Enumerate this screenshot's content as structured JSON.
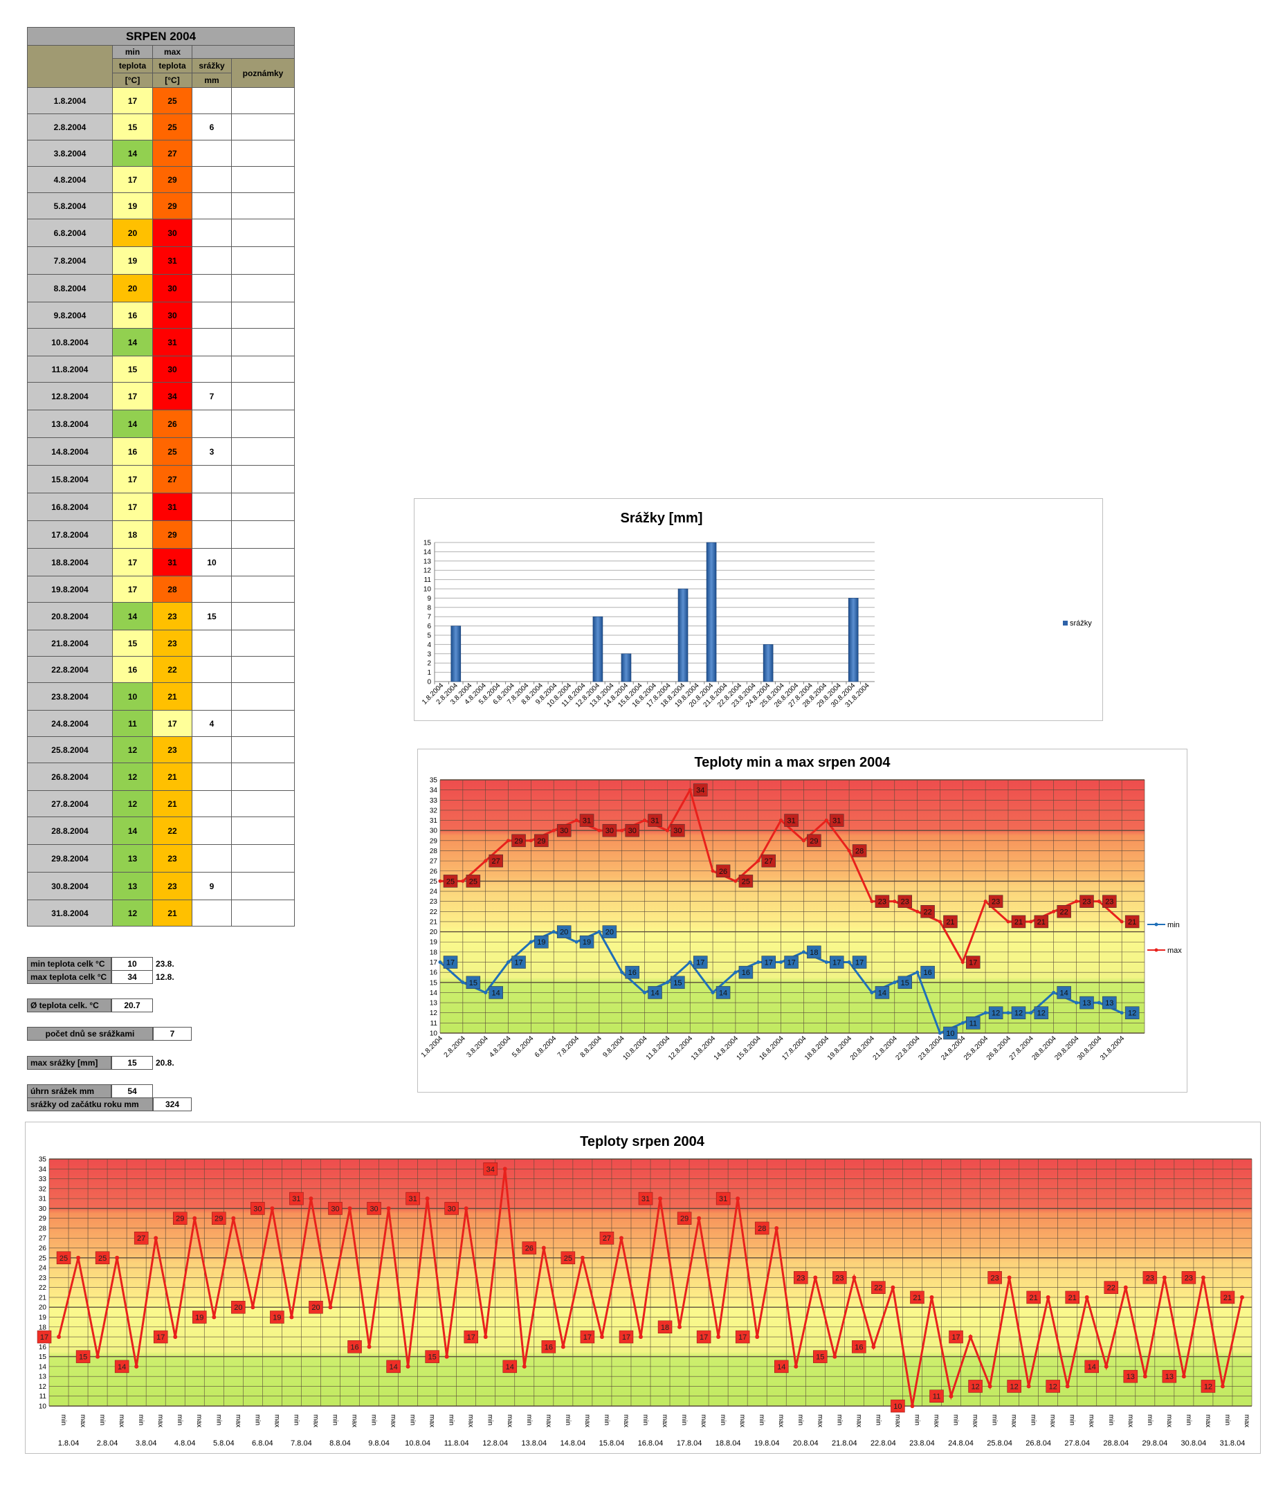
{
  "table": {
    "title": "SRPEN 2004",
    "headers": {
      "min_top": "min",
      "max_top": "max",
      "min_mid": "teplota",
      "max_mid": "teplota",
      "rain_mid": "srážky",
      "notes_mid": "poznámky",
      "min_unit": "[°C]",
      "max_unit": "[°C]",
      "rain_unit": "mm"
    },
    "rows": [
      {
        "date": "1.8.2004",
        "min": "17",
        "max": "25",
        "rain": ""
      },
      {
        "date": "2.8.2004",
        "min": "15",
        "max": "25",
        "rain": "6"
      },
      {
        "date": "3.8.2004",
        "min": "14",
        "max": "27",
        "rain": ""
      },
      {
        "date": "4.8.2004",
        "min": "17",
        "max": "29",
        "rain": ""
      },
      {
        "date": "5.8.2004",
        "min": "19",
        "max": "29",
        "rain": ""
      },
      {
        "date": "6.8.2004",
        "min": "20",
        "max": "30",
        "rain": ""
      },
      {
        "date": "7.8.2004",
        "min": "19",
        "max": "31",
        "rain": ""
      },
      {
        "date": "8.8.2004",
        "min": "20",
        "max": "30",
        "rain": ""
      },
      {
        "date": "9.8.2004",
        "min": "16",
        "max": "30",
        "rain": ""
      },
      {
        "date": "10.8.2004",
        "min": "14",
        "max": "31",
        "rain": ""
      },
      {
        "date": "11.8.2004",
        "min": "15",
        "max": "30",
        "rain": ""
      },
      {
        "date": "12.8.2004",
        "min": "17",
        "max": "34",
        "rain": "7"
      },
      {
        "date": "13.8.2004",
        "min": "14",
        "max": "26",
        "rain": ""
      },
      {
        "date": "14.8.2004",
        "min": "16",
        "max": "25",
        "rain": "3"
      },
      {
        "date": "15.8.2004",
        "min": "17",
        "max": "27",
        "rain": ""
      },
      {
        "date": "16.8.2004",
        "min": "17",
        "max": "31",
        "rain": ""
      },
      {
        "date": "17.8.2004",
        "min": "18",
        "max": "29",
        "rain": ""
      },
      {
        "date": "18.8.2004",
        "min": "17",
        "max": "31",
        "rain": "10"
      },
      {
        "date": "19.8.2004",
        "min": "17",
        "max": "28",
        "rain": ""
      },
      {
        "date": "20.8.2004",
        "min": "14",
        "max": "23",
        "rain": "15"
      },
      {
        "date": "21.8.2004",
        "min": "15",
        "max": "23",
        "rain": ""
      },
      {
        "date": "22.8.2004",
        "min": "16",
        "max": "22",
        "rain": ""
      },
      {
        "date": "23.8.2004",
        "min": "10",
        "max": "21",
        "rain": ""
      },
      {
        "date": "24.8.2004",
        "min": "11",
        "max": "17",
        "rain": "4"
      },
      {
        "date": "25.8.2004",
        "min": "12",
        "max": "23",
        "rain": ""
      },
      {
        "date": "26.8.2004",
        "min": "12",
        "max": "21",
        "rain": ""
      },
      {
        "date": "27.8.2004",
        "min": "12",
        "max": "21",
        "rain": ""
      },
      {
        "date": "28.8.2004",
        "min": "14",
        "max": "22",
        "rain": ""
      },
      {
        "date": "29.8.2004",
        "min": "13",
        "max": "23",
        "rain": ""
      },
      {
        "date": "30.8.2004",
        "min": "13",
        "max": "23",
        "rain": "9"
      },
      {
        "date": "31.8.2004",
        "min": "12",
        "max": "21",
        "rain": ""
      }
    ]
  },
  "summary": {
    "min_label": "min teplota celk °C",
    "min_value": "10",
    "min_date": "23.8.",
    "max_label": "max teplota celk °C",
    "max_value": "34",
    "max_date": "12.8.",
    "avg_label": "Ø teplota celk. °C",
    "avg_value": "20.7",
    "rain_days_label": "počet dnů se srážkami",
    "rain_days_value": "7",
    "max_rain_label": "max srážky [mm]",
    "max_rain_value": "15",
    "max_rain_date": "20.8.",
    "total_rain_label": "úhrn srážek  mm",
    "total_rain_value": "54",
    "ytd_rain_label": "srážky od začátku roku mm",
    "ytd_rain_value": "324"
  },
  "colors": {
    "min_scale": {
      "green": "#92d050",
      "light_yellow": "#ffff99",
      "amber": "#ffc000"
    },
    "max_scale": {
      "red": "#ff0000",
      "orange": "#ff6600",
      "amber": "#ffc000",
      "light_yellow": "#ffff99"
    },
    "bar": "#2e62a8",
    "min_line": "#1f6fb8",
    "max_line": "#e8211c"
  },
  "chart_data": [
    {
      "type": "bar",
      "title": "Srážky [mm]",
      "legend": "srážky",
      "legend_position": "right",
      "grid": true,
      "categories": [
        "1.8.2004",
        "2.8.2004",
        "3.8.2004",
        "4.8.2004",
        "5.8.2004",
        "6.8.2004",
        "7.8.2004",
        "8.8.2004",
        "9.8.2004",
        "10.8.2004",
        "11.8.2004",
        "12.8.2004",
        "13.8.2004",
        "14.8.2004",
        "15.8.2004",
        "16.8.2004",
        "17.8.2004",
        "18.8.2004",
        "19.8.2004",
        "20.8.2004",
        "21.8.2004",
        "22.8.2004",
        "23.8.2004",
        "24.8.2004",
        "25.8.2004",
        "26.8.2004",
        "27.8.2004",
        "28.8.2004",
        "29.8.2004",
        "30.8.2004",
        "31.8.2004"
      ],
      "values": [
        0,
        6,
        0,
        0,
        0,
        0,
        0,
        0,
        0,
        0,
        0,
        7,
        0,
        3,
        0,
        0,
        0,
        10,
        0,
        15,
        0,
        0,
        0,
        4,
        0,
        0,
        0,
        0,
        0,
        9,
        0
      ],
      "ylim": [
        0,
        15
      ]
    },
    {
      "type": "line",
      "title": "Teploty min a max srpen 2004",
      "legend_position": "right",
      "grid": true,
      "categories": [
        "1.8.2004",
        "2.8.2004",
        "3.8.2004",
        "4.8.2004",
        "5.8.2004",
        "6.8.2004",
        "7.8.2004",
        "8.8.2004",
        "9.8.2004",
        "10.8.2004",
        "11.8.2004",
        "12.8.2004",
        "13.8.2004",
        "14.8.2004",
        "15.8.2004",
        "16.8.2004",
        "17.8.2004",
        "18.8.2004",
        "19.8.2004",
        "20.8.2004",
        "21.8.2004",
        "22.8.2004",
        "23.8.2004",
        "24.8.2004",
        "25.8.2004",
        "26.8.2004",
        "27.8.2004",
        "28.8.2004",
        "29.8.2004",
        "30.8.2004",
        "31.8.2004"
      ],
      "series": [
        {
          "name": "min",
          "values": [
            17,
            15,
            14,
            17,
            19,
            20,
            19,
            20,
            16,
            14,
            15,
            17,
            14,
            16,
            17,
            17,
            18,
            17,
            17,
            14,
            15,
            16,
            10,
            11,
            12,
            12,
            12,
            14,
            13,
            13,
            12
          ]
        },
        {
          "name": "max",
          "values": [
            25,
            25,
            27,
            29,
            29,
            30,
            31,
            30,
            30,
            31,
            30,
            34,
            26,
            25,
            27,
            31,
            29,
            31,
            28,
            23,
            23,
            22,
            21,
            17,
            23,
            21,
            21,
            22,
            23,
            23,
            21
          ]
        }
      ],
      "ylim": [
        10,
        35
      ]
    },
    {
      "type": "line",
      "title": "Teploty srpen 2004",
      "grid": true,
      "sub_labels": [
        "min",
        "max"
      ],
      "days": [
        "1.8.04",
        "2.8.04",
        "3.8.04",
        "4.8.04",
        "5.8.04",
        "6.8.04",
        "7.8.04",
        "8.8.04",
        "9.8.04",
        "10.8.04",
        "11.8.04",
        "12.8.04",
        "13.8.04",
        "14.8.04",
        "15.8.04",
        "16.8.04",
        "17.8.04",
        "18.8.04",
        "19.8.04",
        "20.8.04",
        "21.8.04",
        "22.8.04",
        "23.8.04",
        "24.8.04",
        "25.8.04",
        "26.8.04",
        "27.8.04",
        "28.8.04",
        "29.8.04",
        "30.8.04",
        "31.8.04"
      ],
      "values": [
        17,
        25,
        15,
        25,
        14,
        27,
        17,
        29,
        19,
        29,
        20,
        30,
        19,
        31,
        20,
        30,
        16,
        30,
        14,
        31,
        15,
        30,
        17,
        34,
        14,
        26,
        16,
        25,
        17,
        27,
        17,
        31,
        18,
        29,
        17,
        31,
        17,
        28,
        14,
        23,
        15,
        23,
        16,
        22,
        10,
        21,
        11,
        17,
        12,
        23,
        12,
        21,
        12,
        21,
        14,
        22,
        13,
        23,
        13,
        23,
        12,
        21
      ],
      "ylim": [
        10,
        35
      ]
    }
  ]
}
